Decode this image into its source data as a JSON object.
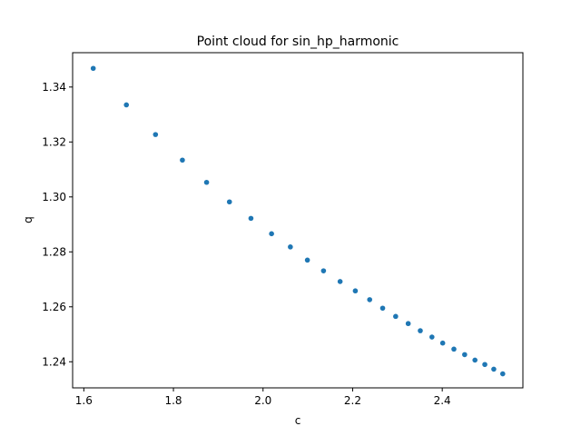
{
  "chart_data": {
    "type": "scatter",
    "title": "Point cloud for sin_hp_harmonic",
    "xlabel": "c",
    "ylabel": "q",
    "xlim": [
      1.575,
      2.58
    ],
    "ylim": [
      1.2305,
      1.3525
    ],
    "xticks": [
      1.6,
      1.8,
      2.0,
      2.2,
      2.4
    ],
    "xtick_labels": [
      "1.6",
      "1.8",
      "2.0",
      "2.2",
      "2.4"
    ],
    "yticks": [
      1.24,
      1.26,
      1.28,
      1.3,
      1.32,
      1.34
    ],
    "ytick_labels": [
      "1.24",
      "1.26",
      "1.28",
      "1.30",
      "1.32",
      "1.34"
    ],
    "grid": false,
    "marker_color": "#1f77b4",
    "points": [
      {
        "x": 1.621,
        "y": 1.3468
      },
      {
        "x": 1.695,
        "y": 1.3335
      },
      {
        "x": 1.76,
        "y": 1.3227
      },
      {
        "x": 1.82,
        "y": 1.3134
      },
      {
        "x": 1.874,
        "y": 1.3053
      },
      {
        "x": 1.925,
        "y": 1.2982
      },
      {
        "x": 1.973,
        "y": 1.2922
      },
      {
        "x": 2.019,
        "y": 1.2866
      },
      {
        "x": 2.061,
        "y": 1.2818
      },
      {
        "x": 2.099,
        "y": 1.277
      },
      {
        "x": 2.135,
        "y": 1.2731
      },
      {
        "x": 2.172,
        "y": 1.2692
      },
      {
        "x": 2.206,
        "y": 1.2658
      },
      {
        "x": 2.238,
        "y": 1.2626
      },
      {
        "x": 2.267,
        "y": 1.2595
      },
      {
        "x": 2.296,
        "y": 1.2565
      },
      {
        "x": 2.324,
        "y": 1.2539
      },
      {
        "x": 2.351,
        "y": 1.2513
      },
      {
        "x": 2.377,
        "y": 1.249
      },
      {
        "x": 2.401,
        "y": 1.2468
      },
      {
        "x": 2.426,
        "y": 1.2446
      },
      {
        "x": 2.45,
        "y": 1.2426
      },
      {
        "x": 2.473,
        "y": 1.2406
      },
      {
        "x": 2.495,
        "y": 1.239
      },
      {
        "x": 2.515,
        "y": 1.2373
      },
      {
        "x": 2.535,
        "y": 1.2356
      }
    ]
  }
}
